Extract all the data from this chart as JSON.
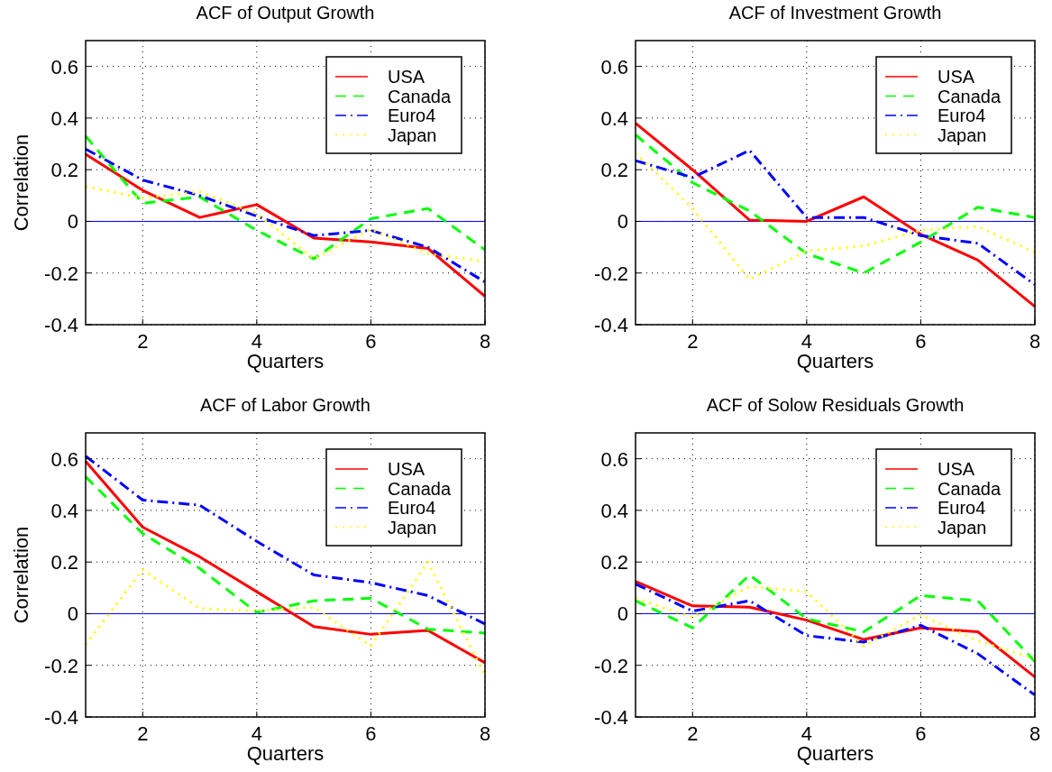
{
  "chart_data": [
    {
      "type": "line",
      "title": "ACF of Output Growth",
      "xlabel": "Quarters",
      "ylabel": "Correlation",
      "x": [
        1,
        2,
        3,
        4,
        5,
        6,
        7,
        8
      ],
      "xlim": [
        1,
        8
      ],
      "xticks": [
        2,
        4,
        6,
        8
      ],
      "ylim": [
        -0.4,
        0.7
      ],
      "yticks": [
        -0.4,
        -0.2,
        0,
        0.2,
        0.4,
        0.6
      ],
      "grid": true,
      "legend": "top right",
      "ref_lines": [
        {
          "axis": "y",
          "value": 0,
          "color": "#0000ff"
        }
      ],
      "series": [
        {
          "name": "USA",
          "color": "#ff0000",
          "line_style": "solid",
          "values": [
            0.26,
            0.12,
            0.015,
            0.065,
            -0.065,
            -0.08,
            -0.105,
            -0.29
          ]
        },
        {
          "name": "Canada",
          "color": "#00ff00",
          "line_style": "dashed",
          "values": [
            0.33,
            0.07,
            0.095,
            -0.035,
            -0.145,
            0.01,
            0.05,
            -0.11
          ]
        },
        {
          "name": "Euro4",
          "color": "#0000ff",
          "line_style": "dashdot",
          "values": [
            0.28,
            0.16,
            0.1,
            0.02,
            -0.055,
            -0.035,
            -0.1,
            -0.235
          ]
        },
        {
          "name": "Japan",
          "color": "#ffff00",
          "line_style": "dotted",
          "values": [
            0.135,
            0.09,
            0.115,
            0.03,
            -0.145,
            -0.03,
            -0.125,
            -0.155
          ]
        }
      ]
    },
    {
      "type": "line",
      "title": "ACF of Investment Growth",
      "xlabel": "Quarters",
      "x": [
        1,
        2,
        3,
        4,
        5,
        6,
        7,
        8
      ],
      "xlim": [
        1,
        8
      ],
      "xticks": [
        2,
        4,
        6,
        8
      ],
      "ylim": [
        -0.4,
        0.7
      ],
      "yticks": [
        -0.4,
        -0.2,
        0,
        0.2,
        0.4,
        0.6
      ],
      "grid": true,
      "legend": "top right",
      "ref_lines": [
        {
          "axis": "y",
          "value": 0,
          "color": "#0000ff"
        }
      ],
      "series": [
        {
          "name": "USA",
          "color": "#ff0000",
          "line_style": "solid",
          "values": [
            0.38,
            0.2,
            0.005,
            0.0,
            0.095,
            -0.05,
            -0.15,
            -0.33
          ]
        },
        {
          "name": "Canada",
          "color": "#00ff00",
          "line_style": "dashed",
          "values": [
            0.335,
            0.15,
            0.04,
            -0.125,
            -0.2,
            -0.08,
            0.055,
            0.015
          ]
        },
        {
          "name": "Euro4",
          "color": "#0000ff",
          "line_style": "dashdot",
          "values": [
            0.235,
            0.17,
            0.275,
            0.015,
            0.015,
            -0.055,
            -0.085,
            -0.245
          ]
        },
        {
          "name": "Japan",
          "color": "#ffff00",
          "line_style": "dotted",
          "values": [
            0.265,
            0.05,
            -0.225,
            -0.115,
            -0.095,
            -0.035,
            -0.02,
            -0.12
          ]
        }
      ]
    },
    {
      "type": "line",
      "title": "ACF of Labor Growth",
      "xlabel": "Quarters",
      "ylabel": "Correlation",
      "x": [
        1,
        2,
        3,
        4,
        5,
        6,
        7,
        8
      ],
      "xlim": [
        1,
        8
      ],
      "xticks": [
        2,
        4,
        6,
        8
      ],
      "ylim": [
        -0.4,
        0.7
      ],
      "yticks": [
        -0.4,
        -0.2,
        0,
        0.2,
        0.4,
        0.6
      ],
      "grid": true,
      "legend": "top right",
      "ref_lines": [
        {
          "axis": "y",
          "value": 0,
          "color": "#0000ff"
        }
      ],
      "series": [
        {
          "name": "USA",
          "color": "#ff0000",
          "line_style": "solid",
          "values": [
            0.59,
            0.335,
            0.22,
            0.085,
            -0.05,
            -0.08,
            -0.065,
            -0.19
          ]
        },
        {
          "name": "Canada",
          "color": "#00ff00",
          "line_style": "dashed",
          "values": [
            0.53,
            0.31,
            0.175,
            0.005,
            0.05,
            0.06,
            -0.06,
            -0.075
          ]
        },
        {
          "name": "Euro4",
          "color": "#0000ff",
          "line_style": "dashdot",
          "values": [
            0.61,
            0.44,
            0.42,
            0.28,
            0.15,
            0.12,
            0.07,
            -0.04
          ]
        },
        {
          "name": "Japan",
          "color": "#ffff00",
          "line_style": "dotted",
          "values": [
            -0.12,
            0.17,
            0.02,
            0.01,
            0.025,
            -0.125,
            0.2,
            -0.24
          ]
        }
      ]
    },
    {
      "type": "line",
      "title": "ACF of Solow Residuals Growth",
      "xlabel": "Quarters",
      "x": [
        1,
        2,
        3,
        4,
        5,
        6,
        7,
        8
      ],
      "xlim": [
        1,
        8
      ],
      "xticks": [
        2,
        4,
        6,
        8
      ],
      "ylim": [
        -0.4,
        0.7
      ],
      "yticks": [
        -0.4,
        -0.2,
        0,
        0.2,
        0.4,
        0.6
      ],
      "grid": true,
      "legend": "top right",
      "ref_lines": [
        {
          "axis": "y",
          "value": 0,
          "color": "#0000ff"
        }
      ],
      "series": [
        {
          "name": "USA",
          "color": "#ff0000",
          "line_style": "solid",
          "values": [
            0.125,
            0.03,
            0.025,
            -0.025,
            -0.1,
            -0.055,
            -0.07,
            -0.245
          ]
        },
        {
          "name": "Canada",
          "color": "#00ff00",
          "line_style": "dashed",
          "values": [
            0.05,
            -0.055,
            0.15,
            -0.02,
            -0.07,
            0.07,
            0.05,
            -0.185
          ]
        },
        {
          "name": "Euro4",
          "color": "#0000ff",
          "line_style": "dashdot",
          "values": [
            0.115,
            0.01,
            0.05,
            -0.085,
            -0.11,
            -0.045,
            -0.155,
            -0.315
          ]
        },
        {
          "name": "Japan",
          "color": "#ffff00",
          "line_style": "dotted",
          "values": [
            0.06,
            -0.015,
            0.105,
            0.085,
            -0.125,
            -0.005,
            -0.105,
            -0.175
          ]
        }
      ]
    }
  ]
}
